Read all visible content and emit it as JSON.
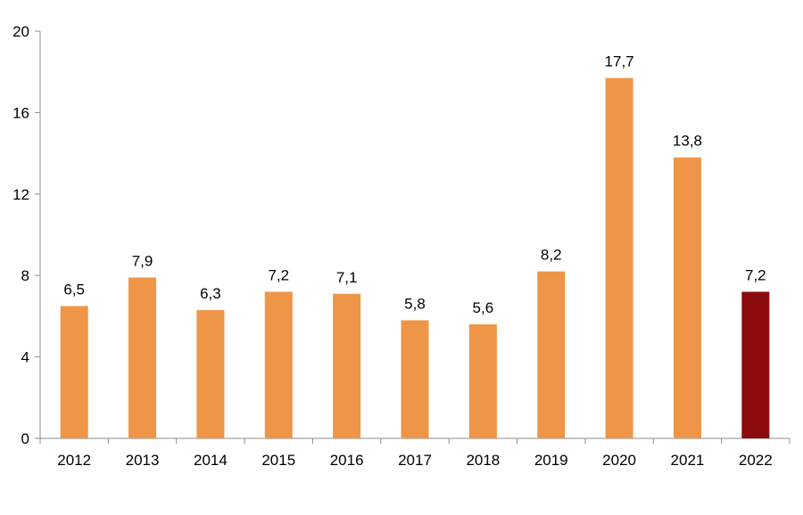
{
  "chart_data": {
    "type": "bar",
    "title": "",
    "xlabel": "",
    "ylabel": "",
    "categories": [
      "2012",
      "2013",
      "2014",
      "2015",
      "2016",
      "2017",
      "2018",
      "2019",
      "2020",
      "2021",
      "2022"
    ],
    "values": [
      6.5,
      7.9,
      6.3,
      7.2,
      7.1,
      5.8,
      5.6,
      8.2,
      17.7,
      13.8,
      7.2
    ],
    "value_labels": [
      "6,5",
      "7,9",
      "6,3",
      "7,2",
      "7,1",
      "5,8",
      "5,6",
      "8,2",
      "17,7",
      "13,8",
      "7,2"
    ],
    "ylim": [
      0,
      20
    ],
    "yticks": [
      0,
      4,
      8,
      12,
      16,
      20
    ],
    "ytick_labels": [
      "0",
      "4",
      "8",
      "12",
      "16",
      "20"
    ],
    "grid": false,
    "legend": "none",
    "colors": {
      "bar": "#ee9548",
      "highlight": "#8b0b0f"
    },
    "highlight_category": "2022"
  }
}
